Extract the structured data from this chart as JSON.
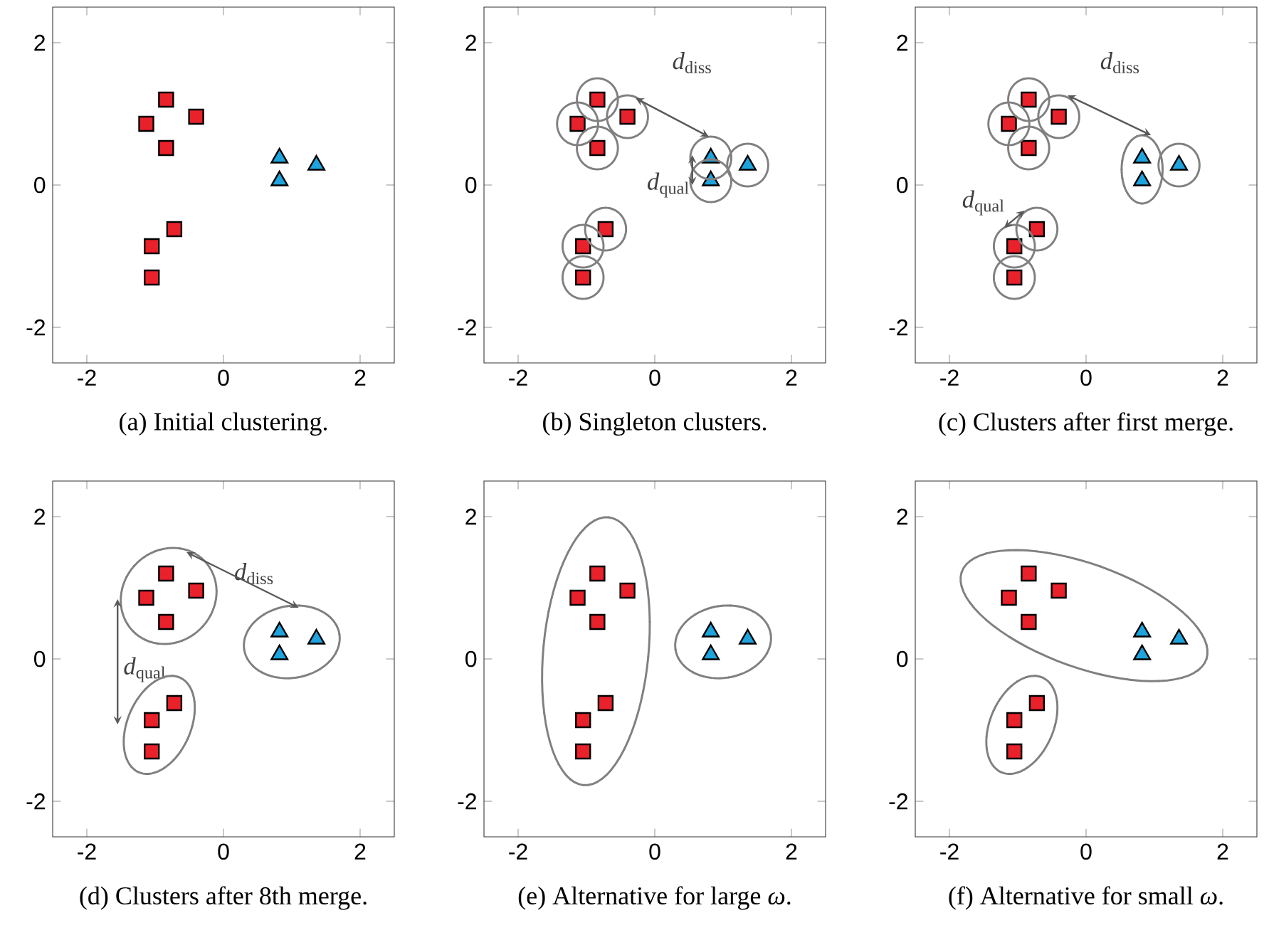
{
  "chart_data": [
    {
      "type": "scatter",
      "title": "(a)  Initial clustering.",
      "xlim": [
        -2.5,
        2.5
      ],
      "ylim": [
        -2.5,
        2.5
      ],
      "xticks": [
        -2,
        0,
        2
      ],
      "yticks": [
        -2,
        0,
        2
      ],
      "series": [
        {
          "color": "#e8212b",
          "marker": "square",
          "x": [
            -1.13,
            -0.84,
            -0.84,
            -0.4,
            -0.72,
            -1.05,
            -1.05
          ],
          "values": [
            0.86,
            1.2,
            0.52,
            0.96,
            -0.62,
            -0.86,
            -1.3
          ]
        },
        {
          "color": "#1ea3dc",
          "marker": "triangle",
          "x": [
            0.82,
            0.82,
            1.36
          ],
          "values": [
            0.38,
            0.06,
            0.28
          ]
        }
      ]
    },
    {
      "type": "scatter",
      "title": "(b)  Singleton clusters.",
      "xlim": [
        -2.5,
        2.5
      ],
      "ylim": [
        -2.5,
        2.5
      ],
      "xticks": [
        -2,
        0,
        2
      ],
      "yticks": [
        -2,
        0,
        2
      ],
      "series": [
        {
          "color": "#e8212b",
          "marker": "square",
          "x": [
            -1.13,
            -0.84,
            -0.84,
            -0.4,
            -0.72,
            -1.05,
            -1.05
          ],
          "values": [
            0.86,
            1.2,
            0.52,
            0.96,
            -0.62,
            -0.86,
            -1.3
          ]
        },
        {
          "color": "#1ea3dc",
          "marker": "triangle",
          "x": [
            0.82,
            0.82,
            1.36
          ],
          "values": [
            0.38,
            0.06,
            0.28
          ]
        }
      ],
      "annotations": [
        "*d*$_{diss}$",
        "*d*$_{qual}$"
      ]
    },
    {
      "type": "scatter",
      "title": "(c)  Clusters after first merge.",
      "xlim": [
        -2.5,
        2.5
      ],
      "ylim": [
        -2.5,
        2.5
      ],
      "xticks": [
        -2,
        0,
        2
      ],
      "yticks": [
        -2,
        0,
        2
      ],
      "series": [
        {
          "color": "#e8212b",
          "marker": "square",
          "x": [
            -1.13,
            -0.84,
            -0.84,
            -0.4,
            -0.72,
            -1.05,
            -1.05
          ],
          "values": [
            0.86,
            1.2,
            0.52,
            0.96,
            -0.62,
            -0.86,
            -1.3
          ]
        },
        {
          "color": "#1ea3dc",
          "marker": "triangle",
          "x": [
            0.82,
            0.82,
            1.36
          ],
          "values": [
            0.38,
            0.06,
            0.28
          ]
        }
      ],
      "annotations": [
        "*d*$_{diss}$",
        "*d*$_{qual}$"
      ]
    },
    {
      "type": "scatter",
      "title": "(d)  Clusters after 8th merge.",
      "xlim": [
        -2.5,
        2.5
      ],
      "ylim": [
        -2.5,
        2.5
      ],
      "xticks": [
        -2,
        0,
        2
      ],
      "yticks": [
        -2,
        0,
        2
      ],
      "series": [
        {
          "color": "#e8212b",
          "marker": "square",
          "x": [
            -1.13,
            -0.84,
            -0.84,
            -0.4,
            -0.72,
            -1.05,
            -1.05
          ],
          "values": [
            0.86,
            1.2,
            0.52,
            0.96,
            -0.62,
            -0.86,
            -1.3
          ]
        },
        {
          "color": "#1ea3dc",
          "marker": "triangle",
          "x": [
            0.82,
            0.82,
            1.36
          ],
          "values": [
            0.38,
            0.06,
            0.28
          ]
        }
      ],
      "annotations": [
        "*d*$_{diss}$",
        "*d*$_{qual}$"
      ]
    },
    {
      "type": "scatter",
      "title": "(e)  Alternative for large *ω*.",
      "xlim": [
        -2.5,
        2.5
      ],
      "ylim": [
        -2.5,
        2.5
      ],
      "xticks": [
        -2,
        0,
        2
      ],
      "yticks": [
        -2,
        0,
        2
      ],
      "series": [
        {
          "color": "#e8212b",
          "marker": "square",
          "x": [
            -1.13,
            -0.84,
            -0.84,
            -0.4,
            -0.72,
            -1.05,
            -1.05
          ],
          "values": [
            0.86,
            1.2,
            0.52,
            0.96,
            -0.62,
            -0.86,
            -1.3
          ]
        },
        {
          "color": "#1ea3dc",
          "marker": "triangle",
          "x": [
            0.82,
            0.82,
            1.36
          ],
          "values": [
            0.38,
            0.06,
            0.28
          ]
        }
      ]
    },
    {
      "type": "scatter",
      "title": "(f)  Alternative for small *ω*.",
      "xlim": [
        -2.5,
        2.5
      ],
      "ylim": [
        -2.5,
        2.5
      ],
      "xticks": [
        -2,
        0,
        2
      ],
      "yticks": [
        -2,
        0,
        2
      ],
      "series": [
        {
          "color": "#e8212b",
          "marker": "square",
          "x": [
            -1.13,
            -0.84,
            -0.84,
            -0.4,
            -0.72,
            -1.05,
            -1.05
          ],
          "values": [
            0.86,
            1.2,
            0.52,
            0.96,
            -0.62,
            -0.86,
            -1.3
          ]
        },
        {
          "color": "#1ea3dc",
          "marker": "triangle",
          "x": [
            0.82,
            0.82,
            1.36
          ],
          "values": [
            0.38,
            0.06,
            0.28
          ]
        }
      ]
    }
  ]
}
